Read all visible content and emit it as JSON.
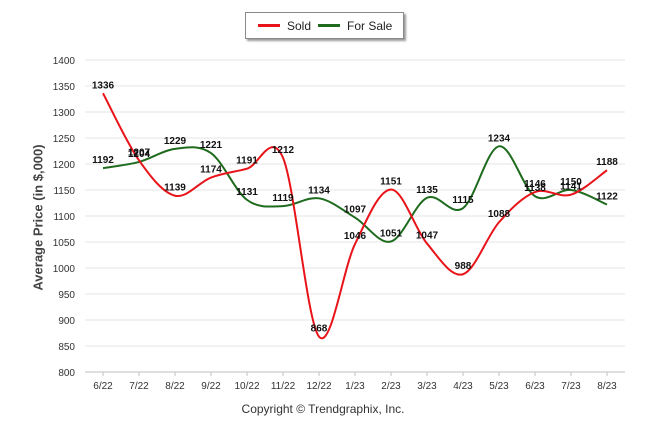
{
  "chart_data": {
    "type": "line",
    "title": "",
    "xlabel": "",
    "ylabel": "Average Price (in $,000)",
    "categories": [
      "6/22",
      "7/22",
      "8/22",
      "9/22",
      "10/22",
      "11/22",
      "12/22",
      "1/23",
      "2/23",
      "3/23",
      "4/23",
      "5/23",
      "6/23",
      "7/23",
      "8/23"
    ],
    "ylim": [
      800,
      1400
    ],
    "yticks": [
      800,
      850,
      900,
      950,
      1000,
      1050,
      1100,
      1150,
      1200,
      1250,
      1300,
      1350,
      1400
    ],
    "grid": true,
    "legend_position": "top-center",
    "series": [
      {
        "name": "Sold",
        "color": "#e8141a",
        "values": [
          1336,
          1207,
          1139,
          1174,
          1191,
          1212,
          868,
          1046,
          1151,
          1047,
          988,
          1088,
          1146,
          1141,
          1188
        ]
      },
      {
        "name": "For Sale",
        "color": "#1e6b1e",
        "values": [
          1192,
          1204,
          1229,
          1221,
          1131,
          1119,
          1134,
          1097,
          1051,
          1135,
          1115,
          1234,
          1138,
          1150,
          1122
        ]
      }
    ]
  },
  "legend": {
    "sold_label": "Sold",
    "for_sale_label": "For Sale"
  },
  "footer": {
    "copyright": "Copyright © Trendgraphix, Inc."
  }
}
